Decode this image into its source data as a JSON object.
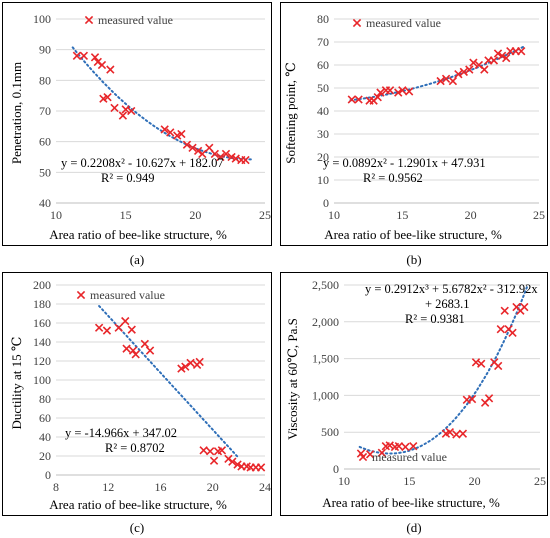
{
  "chart_data": [
    {
      "type": "scatter",
      "caption": "(a)",
      "xlabel": "Area ratio of bee-like structure, %",
      "ylabel": "Penetration, 0.1mm",
      "xlim": [
        10,
        25
      ],
      "ylim": [
        40,
        100
      ],
      "xticks": [
        10,
        15,
        20,
        25
      ],
      "yticks": [
        40,
        50,
        60,
        70,
        80,
        90,
        100
      ],
      "legend": "measured value",
      "legend_position": "top-left",
      "equation": [
        "y = 0.2208x² - 10.627x + 182.07",
        "R² = 0.949"
      ],
      "trend": {
        "kind": "poly",
        "coef": [
          182.07,
          -10.627,
          0.2208
        ],
        "xrange": [
          11.2,
          24
        ]
      },
      "series": [
        {
          "points": [
            [
              11.5,
              88
            ],
            [
              12,
              88
            ],
            [
              12.8,
              87.5
            ],
            [
              13,
              86
            ],
            [
              13.3,
              85
            ],
            [
              13.9,
              83.5
            ],
            [
              13.4,
              74
            ],
            [
              13.7,
              74.5
            ],
            [
              14.2,
              71
            ],
            [
              14.8,
              68.5
            ],
            [
              15,
              70.5
            ],
            [
              15.4,
              70
            ],
            [
              17.8,
              64
            ],
            [
              18.2,
              63
            ],
            [
              18.7,
              62
            ],
            [
              19,
              62.5
            ],
            [
              19.4,
              59
            ],
            [
              19.8,
              58
            ],
            [
              20.2,
              57
            ],
            [
              20.5,
              56
            ],
            [
              21,
              58
            ],
            [
              21.4,
              56
            ],
            [
              21.8,
              55
            ],
            [
              22.2,
              56
            ],
            [
              22.6,
              55
            ],
            [
              22.9,
              54.5
            ],
            [
              23.3,
              54
            ],
            [
              23.6,
              54
            ]
          ]
        }
      ]
    },
    {
      "type": "scatter",
      "caption": "(b)",
      "xlabel": "Area ratio of bee-like structure, %",
      "ylabel": "Softening point, ℃",
      "xlim": [
        10,
        25
      ],
      "ylim": [
        0,
        80
      ],
      "xticks": [
        10,
        15,
        20,
        25
      ],
      "yticks": [
        0,
        10,
        20,
        30,
        40,
        50,
        60,
        70,
        80
      ],
      "legend": "measured value",
      "legend_position": "top",
      "equation": [
        "y = 0.0892x² - 1.2901x + 47.931",
        "R² = 0.9562"
      ],
      "trend": {
        "kind": "poly",
        "coef": [
          47.931,
          -1.2901,
          0.0892
        ],
        "xrange": [
          11.2,
          24
        ]
      },
      "series": [
        {
          "points": [
            [
              11.3,
              45
            ],
            [
              11.8,
              45
            ],
            [
              12.6,
              44.5
            ],
            [
              12.9,
              44.5
            ],
            [
              13.2,
              46
            ],
            [
              13.4,
              48
            ],
            [
              13.8,
              49
            ],
            [
              14.1,
              49
            ],
            [
              14.7,
              48
            ],
            [
              15,
              49
            ],
            [
              15.5,
              48.5
            ],
            [
              17.8,
              53
            ],
            [
              18.2,
              54
            ],
            [
              18.7,
              53
            ],
            [
              19.1,
              56
            ],
            [
              19.5,
              57
            ],
            [
              19.9,
              58
            ],
            [
              20.2,
              61
            ],
            [
              20.6,
              60
            ],
            [
              21,
              58
            ],
            [
              21.3,
              62
            ],
            [
              21.7,
              62
            ],
            [
              22,
              65
            ],
            [
              22.3,
              64
            ],
            [
              22.6,
              63
            ],
            [
              22.9,
              66
            ],
            [
              23.3,
              66
            ],
            [
              23.7,
              66
            ]
          ]
        }
      ]
    },
    {
      "type": "scatter",
      "caption": "(c)",
      "xlabel": "Area ratio of bee-like structure, %",
      "ylabel": "Ductility at 15 ℃",
      "xlim": [
        8,
        24
      ],
      "ylim": [
        0,
        200
      ],
      "xticks": [
        8,
        12,
        16,
        20,
        24
      ],
      "yticks": [
        0,
        20,
        40,
        60,
        80,
        100,
        120,
        140,
        160,
        180,
        200
      ],
      "legend": "measured value",
      "legend_position": "top-left",
      "equation": [
        "y = -14.966x + 347.02",
        "R² = 0.8702"
      ],
      "trend": {
        "kind": "poly",
        "coef": [
          347.02,
          -14.966
        ],
        "xrange": [
          11.3,
          22
        ]
      },
      "series": [
        {
          "points": [
            [
              11.3,
              155
            ],
            [
              11.9,
              152
            ],
            [
              12.8,
              155
            ],
            [
              13.3,
              162
            ],
            [
              13.4,
              133
            ],
            [
              13.8,
              153
            ],
            [
              13.9,
              131
            ],
            [
              14.1,
              127
            ],
            [
              14.8,
              138
            ],
            [
              15.2,
              131
            ],
            [
              17.6,
              112
            ],
            [
              17.9,
              114
            ],
            [
              18.3,
              118
            ],
            [
              18.8,
              116
            ],
            [
              19,
              119
            ],
            [
              19.3,
              26
            ],
            [
              19.8,
              25
            ],
            [
              20.1,
              15
            ],
            [
              20.4,
              25
            ],
            [
              20.7,
              26
            ],
            [
              21.2,
              17
            ],
            [
              21.5,
              14
            ],
            [
              21.9,
              11
            ],
            [
              22.2,
              9
            ],
            [
              22.6,
              9
            ],
            [
              22.9,
              8
            ],
            [
              23.3,
              8
            ],
            [
              23.7,
              8
            ]
          ]
        }
      ]
    },
    {
      "type": "scatter",
      "caption": "(d)",
      "xlabel": "Area ratio of bee-like structure, %",
      "ylabel": "Viscosity at 60℃, Pa.S",
      "xlim": [
        10,
        25
      ],
      "ylim": [
        0,
        2500
      ],
      "xticks": [
        10,
        15,
        20,
        25
      ],
      "yticks": [
        0,
        500,
        1000,
        1500,
        2000,
        2500
      ],
      "ytick_labels": [
        "0",
        "500",
        "1,000",
        "1,500",
        "2,000",
        "2,500"
      ],
      "legend": "measured value",
      "legend_position": "bottom-right",
      "equation": [
        "y = 0.2912x³ + 5.6782x² - 312.92x",
        "+ 2683.1",
        "R² = 0.9381"
      ],
      "trend": {
        "kind": "poly",
        "coef": [
          2683.1,
          -312.92,
          5.6782,
          0.2912
        ],
        "xrange": [
          11.2,
          24
        ]
      },
      "series": [
        {
          "points": [
            [
              11.3,
              210
            ],
            [
              12,
              200
            ],
            [
              12.9,
              220
            ],
            [
              13.2,
              310
            ],
            [
              13.5,
              320
            ],
            [
              13.9,
              300
            ],
            [
              14.2,
              310
            ],
            [
              14.7,
              300
            ],
            [
              15.3,
              310
            ],
            [
              17.8,
              480
            ],
            [
              18.1,
              500
            ],
            [
              18.6,
              470
            ],
            [
              19.1,
              480
            ],
            [
              19.4,
              940
            ],
            [
              19.8,
              950
            ],
            [
              20.1,
              1450
            ],
            [
              20.5,
              1430
            ],
            [
              20.8,
              900
            ],
            [
              21.1,
              960
            ],
            [
              21.5,
              1450
            ],
            [
              21.8,
              1400
            ],
            [
              22,
              1900
            ],
            [
              22.3,
              2150
            ],
            [
              22.6,
              1900
            ],
            [
              22.9,
              1850
            ],
            [
              23.2,
              2200
            ],
            [
              23.5,
              2150
            ],
            [
              23.8,
              2200
            ]
          ]
        }
      ]
    }
  ]
}
